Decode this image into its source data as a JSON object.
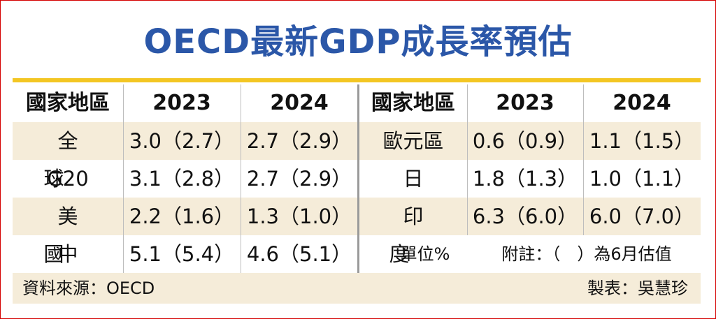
{
  "title": "OECD最新GDP成長率預估",
  "left_table": {
    "headers": [
      "國家地區",
      "2023",
      "2024"
    ],
    "rows": [
      {
        "region": "全球",
        "y2023": "3.0（2.7）",
        "y2024": "2.7（2.9）"
      },
      {
        "region": "G20",
        "y2023": "3.1（2.8）",
        "y2024": "2.7（2.9）"
      },
      {
        "region": "美國",
        "y2023": "2.2（1.6）",
        "y2024": "1.3（1.0）"
      },
      {
        "region": "中國",
        "y2023": "5.1（5.4）",
        "y2024": "4.6（5.1）"
      }
    ]
  },
  "right_table": {
    "headers": [
      "國家地區",
      "2023",
      "2024"
    ],
    "rows": [
      {
        "region": "歐元區",
        "y2023": "0.6（0.9）",
        "y2024": "1.1（1.5）"
      },
      {
        "region": "日本",
        "y2023": "1.8（1.3）",
        "y2024": "1.0（1.1）"
      },
      {
        "region": "印度",
        "y2023": "6.3（6.0）",
        "y2024": "6.0（7.0）"
      }
    ]
  },
  "note": {
    "unit": "單位%",
    "remark": "附註：（　）為6月估值"
  },
  "footer": {
    "source": "資料來源：OECD",
    "credit": "製表：吳慧珍"
  },
  "colors": {
    "title": "#2b57a8",
    "gold_bar": "#f3c623",
    "row_shade": "#f5ecd9",
    "frame_border": "#d40000"
  }
}
